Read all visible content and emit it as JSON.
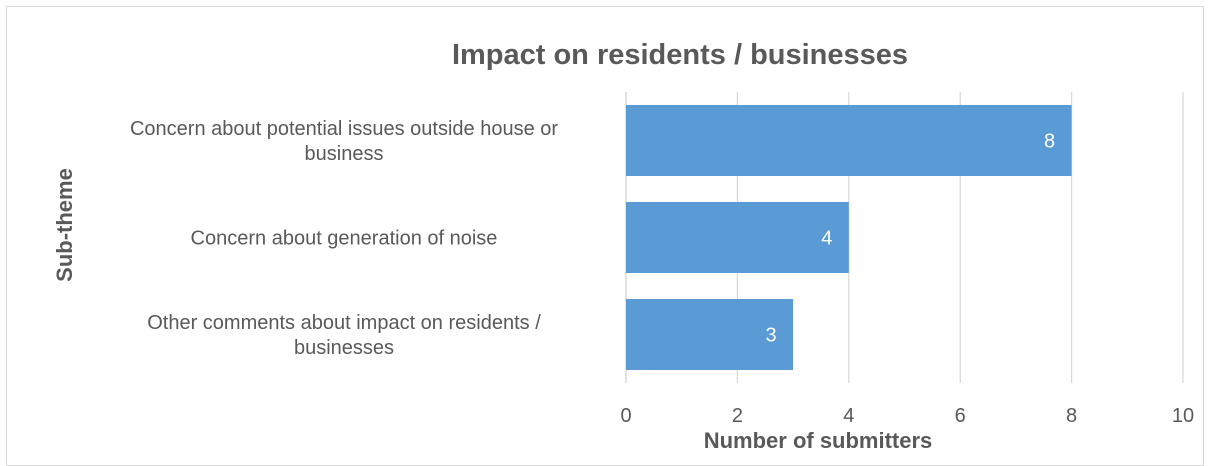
{
  "chart_data": {
    "type": "bar",
    "orientation": "horizontal",
    "title": "Impact on residents / businesses",
    "xlabel": "Number of submitters",
    "ylabel": "Sub-theme",
    "categories": [
      [
        "Concern about  potential issues outside house or",
        "business"
      ],
      [
        "Concern about generation of noise"
      ],
      [
        "Other comments about impact on residents /",
        "businesses"
      ]
    ],
    "values": [
      8,
      4,
      3
    ],
    "data_labels": [
      "8",
      "4",
      "3"
    ],
    "xlim": [
      0,
      10
    ],
    "xticks": [
      0,
      2,
      4,
      6,
      8,
      10
    ],
    "xtick_labels": [
      "0",
      "2",
      "4",
      "6",
      "8",
      "10"
    ],
    "grid": true,
    "legend": "none",
    "bar_color": "#5b9bd5",
    "gridline_color": "#d9d9d9",
    "text_color": "#595959"
  }
}
